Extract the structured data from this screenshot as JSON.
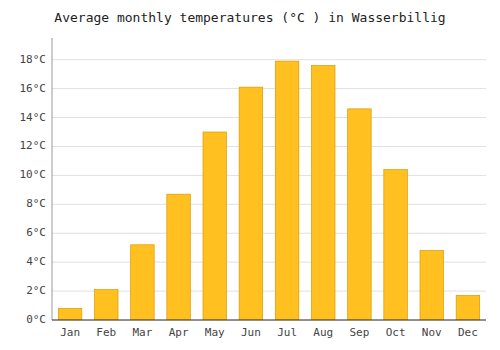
{
  "chart_data": {
    "type": "bar",
    "title": "Average monthly temperatures (°C ) in Wasserbillig",
    "categories": [
      "Jan",
      "Feb",
      "Mar",
      "Apr",
      "May",
      "Jun",
      "Jul",
      "Aug",
      "Sep",
      "Oct",
      "Nov",
      "Dec"
    ],
    "values": [
      0.8,
      2.1,
      5.2,
      8.7,
      13.0,
      16.1,
      17.9,
      17.6,
      14.6,
      10.4,
      4.8,
      1.7
    ],
    "color": "#FFC020",
    "ylim": [
      0,
      19.5
    ],
    "yticks": [
      {
        "value": 0,
        "label": "0°C"
      },
      {
        "value": 2,
        "label": "2°C"
      },
      {
        "value": 4,
        "label": "4°C"
      },
      {
        "value": 6,
        "label": "6°C"
      },
      {
        "value": 8,
        "label": "8°C"
      },
      {
        "value": 10,
        "label": "10°C"
      },
      {
        "value": 12,
        "label": "12°C"
      },
      {
        "value": 14,
        "label": "14°C"
      },
      {
        "value": 16,
        "label": "16°C"
      },
      {
        "value": 18,
        "label": "18°C"
      }
    ],
    "grid": true
  }
}
